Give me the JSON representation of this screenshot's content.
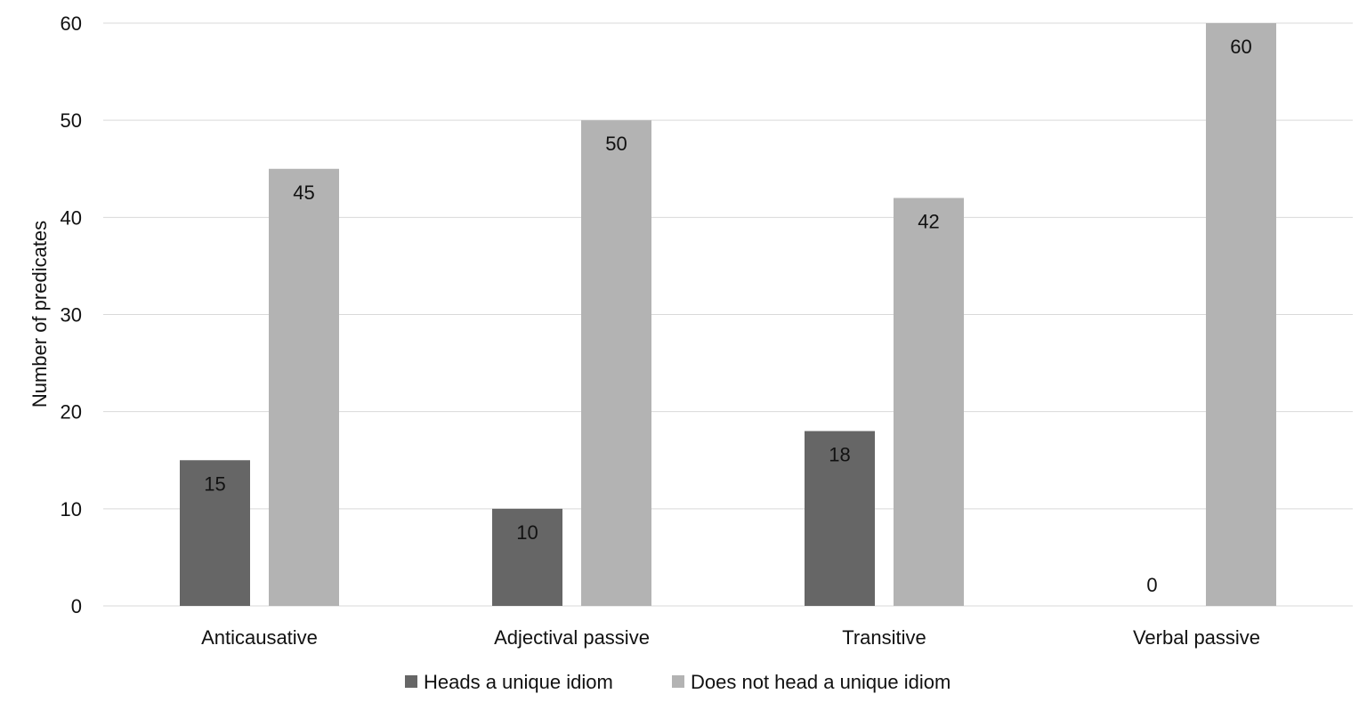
{
  "chart_data": {
    "type": "bar",
    "categories": [
      "Anticausative",
      "Adjectival passive",
      "Transitive",
      "Verbal passive"
    ],
    "series": [
      {
        "name": "Heads a unique idiom",
        "values": [
          15,
          10,
          18,
          0
        ],
        "color": "#666666"
      },
      {
        "name": "Does not head a unique idiom",
        "values": [
          45,
          50,
          42,
          60
        ],
        "color": "#b3b3b3"
      }
    ],
    "ylabel": "Number of predicates",
    "xlabel": "",
    "ylim": [
      0,
      60
    ],
    "yticks": [
      0,
      10,
      20,
      30,
      40,
      50,
      60
    ],
    "grid": true,
    "legend_position": "bottom"
  }
}
